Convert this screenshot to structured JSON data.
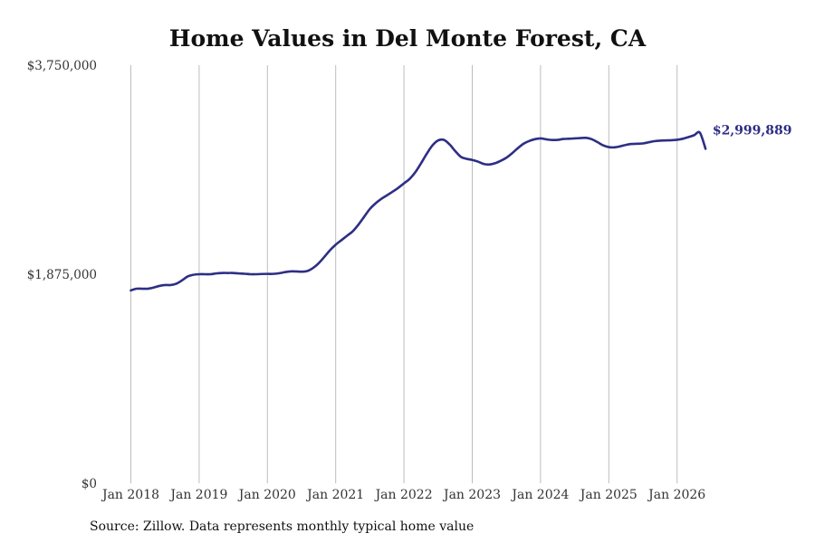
{
  "chart_data": {
    "type": "line",
    "title": "Home Values in Del Monte Forest, CA",
    "source": "Source: Zillow. Data represents monthly typical home value",
    "y_tick_labels": [
      "$3,750,000",
      "$1,875,000",
      "$0"
    ],
    "y_tick_values": [
      3750000,
      1875000,
      0
    ],
    "ylim": [
      0,
      3750000
    ],
    "x_tick_labels": [
      "Jan 2018",
      "Jan 2019",
      "Jan 2020",
      "Jan 2021",
      "Jan 2022",
      "Jan 2023",
      "Jan 2024",
      "Jan 2025",
      "Jan 2026"
    ],
    "x_tick_values": [
      "2018-01",
      "2019-01",
      "2020-01",
      "2021-01",
      "2022-01",
      "2023-01",
      "2024-01",
      "2025-01",
      "2026-01"
    ],
    "grid": "vertical",
    "line_color": "#2e2e85",
    "end_label": "$2,999,889",
    "series": [
      {
        "x": [
          "2018-01",
          "2018-02",
          "2018-03",
          "2018-04",
          "2018-05",
          "2018-06",
          "2018-07",
          "2018-08",
          "2018-09",
          "2018-10",
          "2018-11",
          "2018-12",
          "2019-01",
          "2019-02",
          "2019-03",
          "2019-04",
          "2019-05",
          "2019-06",
          "2019-07",
          "2019-08",
          "2019-09",
          "2019-10",
          "2019-11",
          "2019-12",
          "2020-01",
          "2020-02",
          "2020-03",
          "2020-04",
          "2020-05",
          "2020-06",
          "2020-07",
          "2020-08",
          "2020-09",
          "2020-10",
          "2020-11",
          "2020-12",
          "2021-01",
          "2021-02",
          "2021-03",
          "2021-04",
          "2021-05",
          "2021-06",
          "2021-07",
          "2021-08",
          "2021-09",
          "2021-10",
          "2021-11",
          "2021-12",
          "2022-01",
          "2022-02",
          "2022-03",
          "2022-04",
          "2022-05",
          "2022-06",
          "2022-07",
          "2022-08",
          "2022-09",
          "2022-10",
          "2022-11",
          "2022-12",
          "2023-01",
          "2023-02",
          "2023-03",
          "2023-04",
          "2023-05",
          "2023-06",
          "2023-07",
          "2023-08",
          "2023-09",
          "2023-10",
          "2023-11",
          "2023-12",
          "2024-01",
          "2024-02",
          "2024-03",
          "2024-04",
          "2024-05",
          "2024-06",
          "2024-07",
          "2024-08",
          "2024-09",
          "2024-10",
          "2024-11",
          "2024-12",
          "2025-01",
          "2025-02",
          "2025-03",
          "2025-04",
          "2025-05",
          "2025-06",
          "2025-07",
          "2025-08",
          "2025-09",
          "2025-10",
          "2025-11",
          "2025-12",
          "2026-01",
          "2026-02",
          "2026-03",
          "2026-04",
          "2026-05",
          "2026-06"
        ],
        "y": [
          1730000,
          1745000,
          1745000,
          1745000,
          1755000,
          1770000,
          1778000,
          1778000,
          1790000,
          1820000,
          1855000,
          1870000,
          1875000,
          1875000,
          1875000,
          1882000,
          1886000,
          1886000,
          1886000,
          1882000,
          1879000,
          1875000,
          1875000,
          1877000,
          1878000,
          1878000,
          1883000,
          1893000,
          1900000,
          1900000,
          1898000,
          1903000,
          1930000,
          1973000,
          2030000,
          2090000,
          2140000,
          2180000,
          2220000,
          2260000,
          2320000,
          2390000,
          2460000,
          2510000,
          2550000,
          2582000,
          2615000,
          2650000,
          2690000,
          2730000,
          2790000,
          2870000,
          2955000,
          3030000,
          3075000,
          3080000,
          3040000,
          2980000,
          2928000,
          2910000,
          2900000,
          2885000,
          2864000,
          2859000,
          2870000,
          2892000,
          2920000,
          2960000,
          3005000,
          3045000,
          3070000,
          3086000,
          3093000,
          3085000,
          3079000,
          3080000,
          3088000,
          3090000,
          3093000,
          3096000,
          3098000,
          3086000,
          3060000,
          3031000,
          3015000,
          3013000,
          3022000,
          3035000,
          3043000,
          3045000,
          3048000,
          3058000,
          3068000,
          3073000,
          3075000,
          3077000,
          3081000,
          3090000,
          3105000,
          3122000,
          3145000,
          3000000
        ]
      }
    ]
  }
}
